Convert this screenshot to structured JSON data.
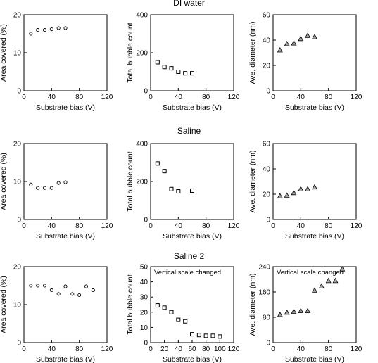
{
  "rows": [
    {
      "title": "DI water"
    },
    {
      "title": "Saline"
    },
    {
      "title": "Saline 2"
    }
  ],
  "chart_data": [
    {
      "type": "scatter",
      "row": 0,
      "col": 0,
      "marker": "circle",
      "xlabel": "Substrate bias (V)",
      "ylabel": "Area covered (%)",
      "xlim": [
        0,
        120
      ],
      "ylim": [
        0,
        20
      ],
      "xticks": [
        0,
        40,
        80,
        120
      ],
      "yticks": [
        0,
        10,
        20
      ],
      "note": "",
      "series": [
        {
          "x": [
            10,
            20,
            30,
            40,
            50,
            60
          ],
          "y": [
            15,
            16,
            16,
            16.2,
            16.5,
            16.5
          ]
        }
      ]
    },
    {
      "type": "scatter",
      "row": 0,
      "col": 1,
      "marker": "square",
      "xlabel": "Substrate bias (V)",
      "ylabel": "Total bubble count",
      "xlim": [
        0,
        120
      ],
      "ylim": [
        0,
        400
      ],
      "xticks": [
        0,
        40,
        80,
        120
      ],
      "yticks": [
        0,
        200,
        400
      ],
      "note": "",
      "series": [
        {
          "x": [
            10,
            20,
            30,
            40,
            50,
            60
          ],
          "y": [
            150,
            125,
            118,
            100,
            92,
            92
          ]
        }
      ]
    },
    {
      "type": "scatter",
      "row": 0,
      "col": 2,
      "marker": "triangle",
      "xlabel": "Substrate bias (V)",
      "ylabel": "Ave. diameter (nm)",
      "xlim": [
        0,
        120
      ],
      "ylim": [
        0,
        60
      ],
      "xticks": [
        0,
        40,
        80,
        120
      ],
      "yticks": [
        0,
        20,
        40,
        60
      ],
      "note": "",
      "series": [
        {
          "x": [
            10,
            20,
            30,
            40,
            50,
            60
          ],
          "y": [
            32,
            37,
            37.5,
            41,
            43.5,
            42.5
          ]
        }
      ]
    },
    {
      "type": "scatter",
      "row": 1,
      "col": 0,
      "marker": "circle",
      "xlabel": "Substrate bias (V)",
      "ylabel": "Area covered (%)",
      "xlim": [
        0,
        120
      ],
      "ylim": [
        0,
        20
      ],
      "xticks": [
        0,
        40,
        80,
        120
      ],
      "yticks": [
        0,
        10,
        20
      ],
      "note": "",
      "series": [
        {
          "x": [
            10,
            20,
            30,
            40,
            50,
            60
          ],
          "y": [
            9.2,
            8.3,
            8.3,
            8.3,
            9.6,
            9.8
          ]
        }
      ]
    },
    {
      "type": "scatter",
      "row": 1,
      "col": 1,
      "marker": "square",
      "xlabel": "Substrate bias (V)",
      "ylabel": "Total bubble count",
      "xlim": [
        0,
        120
      ],
      "ylim": [
        0,
        400
      ],
      "xticks": [
        0,
        40,
        80,
        120
      ],
      "yticks": [
        0,
        200,
        400
      ],
      "note": "",
      "series": [
        {
          "x": [
            10,
            20,
            30,
            40,
            60
          ],
          "y": [
            295,
            255,
            160,
            148,
            152
          ]
        }
      ]
    },
    {
      "type": "scatter",
      "row": 1,
      "col": 2,
      "marker": "triangle",
      "xlabel": "Substrate bias (V)",
      "ylabel": "Ave. diameter (nm)",
      "xlim": [
        0,
        120
      ],
      "ylim": [
        0,
        60
      ],
      "xticks": [
        0,
        40,
        80,
        120
      ],
      "yticks": [
        0,
        20,
        40,
        60
      ],
      "note": "",
      "series": [
        {
          "x": [
            10,
            20,
            30,
            40,
            50,
            60
          ],
          "y": [
            18.5,
            19,
            21,
            24,
            24,
            25.5
          ]
        }
      ]
    },
    {
      "type": "scatter",
      "row": 2,
      "col": 0,
      "marker": "circle",
      "xlabel": "Substrate bias (V)",
      "ylabel": "Area covered (%)",
      "xlim": [
        0,
        120
      ],
      "ylim": [
        0,
        20
      ],
      "xticks": [
        0,
        40,
        80,
        120
      ],
      "yticks": [
        0,
        10,
        20
      ],
      "note": "",
      "series": [
        {
          "x": [
            10,
            20,
            30,
            40,
            50,
            60,
            70,
            80,
            90,
            100
          ],
          "y": [
            15,
            15,
            15,
            13.8,
            12.8,
            14.8,
            12.8,
            12.5,
            14.8,
            13.8
          ]
        }
      ]
    },
    {
      "type": "scatter",
      "row": 2,
      "col": 1,
      "marker": "square",
      "xlabel": "Substrate bias (V)",
      "ylabel": "Total bubble count",
      "xlim": [
        0,
        120
      ],
      "ylim": [
        0,
        50
      ],
      "xticks": [
        0,
        20,
        40,
        60,
        80,
        100,
        120
      ],
      "yticks": [
        0,
        10,
        20,
        30,
        40,
        50
      ],
      "note": "Vertical scale changed",
      "series": [
        {
          "x": [
            10,
            20,
            30,
            40,
            50,
            60,
            70,
            80,
            90,
            100
          ],
          "y": [
            24.5,
            23,
            20,
            15,
            14,
            5.5,
            5,
            4.5,
            4.5,
            4
          ]
        }
      ]
    },
    {
      "type": "scatter",
      "row": 2,
      "col": 2,
      "marker": "triangle",
      "xlabel": "Substrate bias (V)",
      "ylabel": "Ave. diameter (nm)",
      "xlim": [
        0,
        120
      ],
      "ylim": [
        0,
        240
      ],
      "xticks": [
        0,
        40,
        80,
        120
      ],
      "yticks": [
        0,
        80,
        160,
        240
      ],
      "note": "Vertical scale changed",
      "series": [
        {
          "x": [
            10,
            20,
            30,
            40,
            50,
            60,
            70,
            80,
            90,
            100
          ],
          "y": [
            88,
            95,
            98,
            100,
            100,
            165,
            178,
            195,
            195,
            232
          ]
        }
      ]
    }
  ]
}
